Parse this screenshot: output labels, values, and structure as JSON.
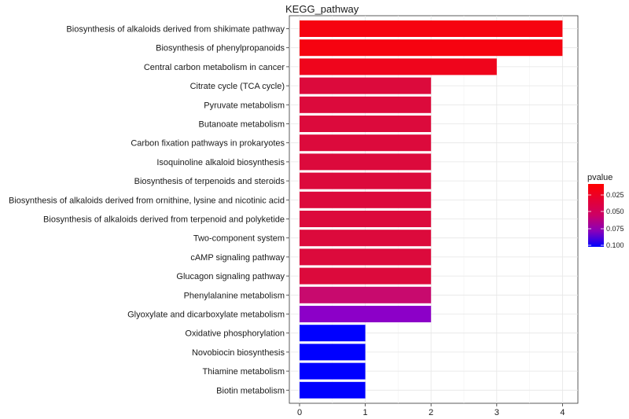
{
  "chart_data": {
    "type": "bar",
    "orientation": "horizontal",
    "title": "KEGG_pathway",
    "xlabel": "",
    "ylabel": "",
    "xlim": [
      0,
      4
    ],
    "xticks": [
      "0",
      "1",
      "2",
      "3",
      "4"
    ],
    "grid": true,
    "legend": {
      "title": "pvalue",
      "position": "right",
      "ticks": [
        "0.025",
        "0.050",
        "0.075",
        "0.100"
      ],
      "color_low": "#ff0000",
      "color_high": "#0000ff"
    },
    "categories": [
      "Biosynthesis of alkaloids derived from shikimate pathway",
      "Biosynthesis of phenylpropanoids",
      "Central carbon metabolism in cancer",
      "Citrate cycle (TCA cycle)",
      "Pyruvate metabolism",
      "Butanoate metabolism",
      "Carbon fixation pathways in prokaryotes",
      "Isoquinoline alkaloid biosynthesis",
      "Biosynthesis of terpenoids and steroids",
      "Biosynthesis of alkaloids derived from ornithine, lysine and nicotinic acid",
      "Biosynthesis of alkaloids derived from terpenoid and polyketide",
      "Two-component system",
      "cAMP signaling pathway",
      "Glucagon signaling pathway",
      "Phenylalanine metabolism",
      "Glyoxylate and dicarboxylate metabolism",
      "Oxidative phosphorylation",
      "Novobiocin biosynthesis",
      "Thiamine metabolism",
      "Biotin metabolism"
    ],
    "values": [
      4,
      4,
      3,
      2,
      2,
      2,
      2,
      2,
      2,
      2,
      2,
      2,
      2,
      2,
      2,
      2,
      1,
      1,
      1,
      1
    ],
    "pvalues": [
      0.008,
      0.008,
      0.014,
      0.03,
      0.03,
      0.03,
      0.03,
      0.03,
      0.03,
      0.03,
      0.03,
      0.03,
      0.03,
      0.03,
      0.05,
      0.072,
      0.105,
      0.105,
      0.105,
      0.105
    ]
  }
}
